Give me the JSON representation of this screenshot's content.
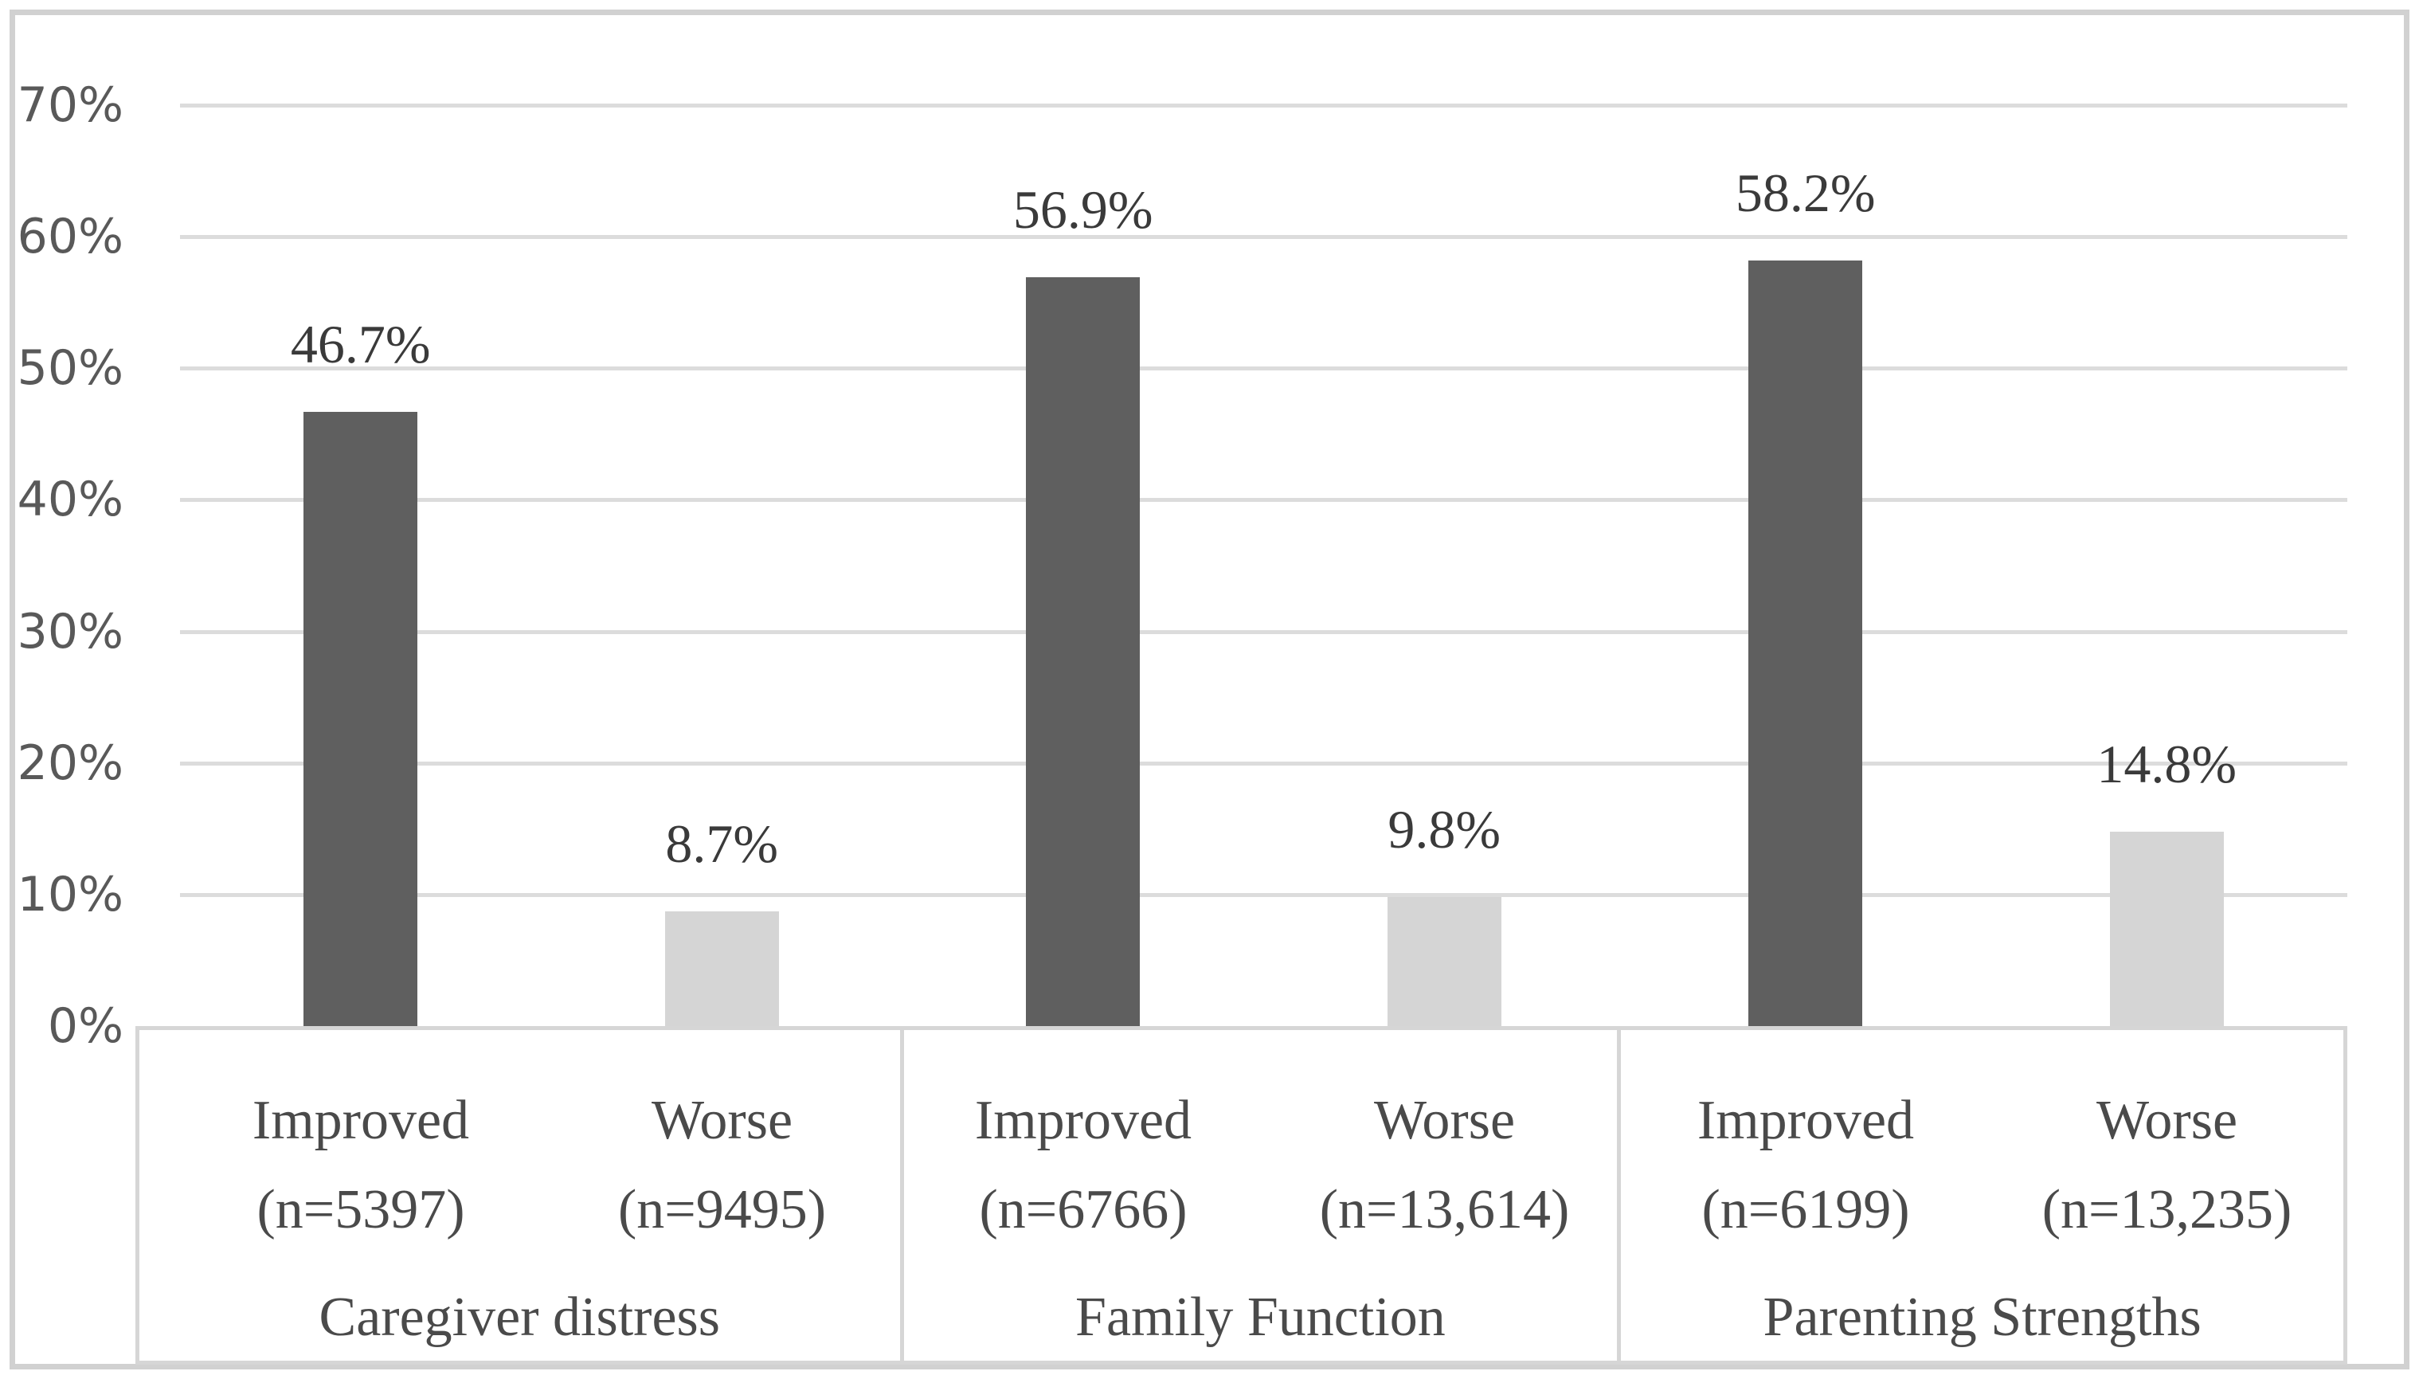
{
  "chart_data": {
    "type": "bar",
    "title": "",
    "xlabel": "",
    "ylabel": "",
    "ylim": [
      0,
      70
    ],
    "grid": "horizontal",
    "legend": "none",
    "y_ticks": [
      {
        "label": "70%",
        "value": 70
      },
      {
        "label": "60%",
        "value": 60
      },
      {
        "label": "50%",
        "value": 50
      },
      {
        "label": "40%",
        "value": 40
      },
      {
        "label": "30%",
        "value": 30
      },
      {
        "label": "20%",
        "value": 20
      },
      {
        "label": "10%",
        "value": 10
      },
      {
        "label": "0%",
        "value": 0
      }
    ],
    "groups": [
      {
        "category": "Caregiver distress",
        "bars": [
          {
            "series": "Improved",
            "tick_line1": "Improved",
            "tick_line2": "(n=5397)",
            "value": 46.7,
            "value_label": "46.7%"
          },
          {
            "series": "Worse",
            "tick_line1": "Worse",
            "tick_line2": "(n=9495)",
            "value": 8.7,
            "value_label": "8.7%"
          }
        ]
      },
      {
        "category": "Family Function",
        "bars": [
          {
            "series": "Improved",
            "tick_line1": "Improved",
            "tick_line2": "(n=6766)",
            "value": 56.9,
            "value_label": "56.9%"
          },
          {
            "series": "Worse",
            "tick_line1": "Worse",
            "tick_line2": "(n=13,614)",
            "value": 9.8,
            "value_label": "9.8%"
          }
        ]
      },
      {
        "category": "Parenting Strengths",
        "bars": [
          {
            "series": "Improved",
            "tick_line1": "Improved",
            "tick_line2": "(n=6199)",
            "value": 58.2,
            "value_label": "58.2%"
          },
          {
            "series": "Worse",
            "tick_line1": "Worse",
            "tick_line2": "(n=13,235)",
            "value": 14.8,
            "value_label": "14.8%"
          }
        ]
      }
    ],
    "colors": {
      "bar_improved": "#5f5f5f",
      "bar_worse": "#d5d5d5",
      "gridline": "#dcdcdc",
      "axis_box_border": "#d6d6d6",
      "frame_border": "#d1d1d1",
      "tick_text": "#595959",
      "label_text": "#3a3a3a",
      "background": "#ffffff"
    }
  }
}
